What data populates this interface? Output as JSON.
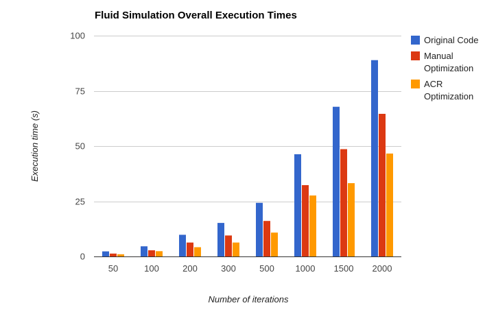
{
  "chart_data": {
    "type": "bar",
    "title": "Fluid Simulation Overall Execution Times",
    "xlabel": "Number of iterations",
    "ylabel": "Execution time (s)",
    "categories": [
      "50",
      "100",
      "200",
      "300",
      "500",
      "1000",
      "1500",
      "2000"
    ],
    "ylim": [
      0,
      100
    ],
    "yticks": [
      0,
      25,
      50,
      75,
      100
    ],
    "grid": true,
    "legend_position": "right",
    "series": [
      {
        "name": "Original Code",
        "color": "#3366cc",
        "values": [
          2.3,
          4.6,
          9.8,
          15.2,
          24.3,
          46.3,
          67.8,
          88.9
        ]
      },
      {
        "name": "Manual Optimization",
        "legend_lines": [
          "Manual",
          "Optimization"
        ],
        "color": "#dc3912",
        "values": [
          1.3,
          2.8,
          6.3,
          9.5,
          16.1,
          32.3,
          48.6,
          64.6
        ]
      },
      {
        "name": "ACR Optimization",
        "legend_lines": [
          "ACR",
          "Optimization"
        ],
        "color": "#ff9900",
        "values": [
          1.0,
          2.4,
          4.2,
          6.3,
          10.8,
          27.6,
          33.2,
          46.6
        ]
      }
    ]
  }
}
